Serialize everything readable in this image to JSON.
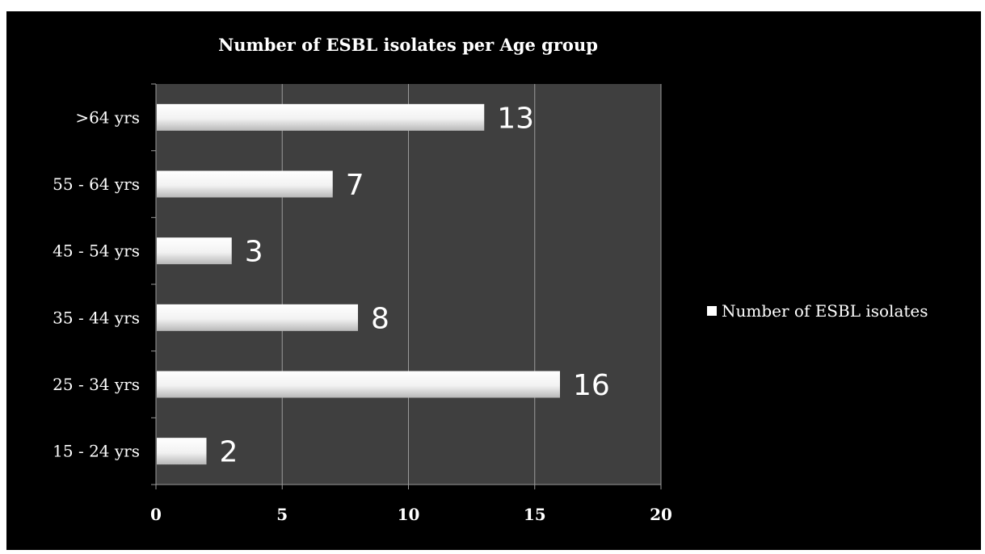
{
  "chart_data": {
    "type": "bar",
    "orientation": "horizontal",
    "title": "Number of ESBL isolates per Age group",
    "xlabel": "",
    "ylabel": "",
    "categories": [
      "15 - 24 yrs",
      "25 - 34 yrs",
      "35 - 44 yrs",
      "45 - 54 yrs",
      "55 - 64 yrs",
      ">64 yrs"
    ],
    "series": [
      {
        "name": "Number of ESBL isolates",
        "values": [
          2,
          16,
          8,
          3,
          7,
          13
        ]
      }
    ],
    "xlim": [
      0,
      20
    ],
    "xticks": [
      0,
      5,
      10,
      15,
      20
    ],
    "grid": true,
    "data_labels": true,
    "legend": "right",
    "colors": {
      "background": "#000000",
      "plot_area": "#3f3f3f",
      "bar": "#ffffff",
      "gridline": "#9a9a9a",
      "text": "#ffffff"
    }
  }
}
